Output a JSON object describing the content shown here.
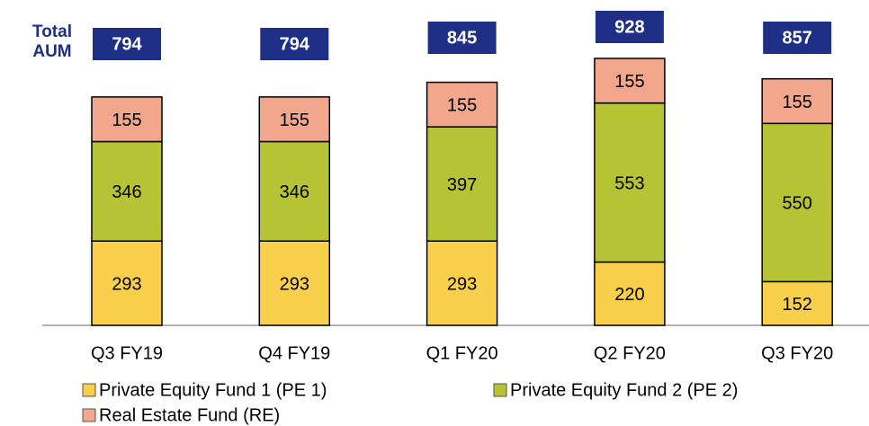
{
  "chart_data": {
    "type": "stacked_bar",
    "total_label": "Total\nAUM",
    "categories": [
      "Q3 FY19",
      "Q4 FY19",
      "Q1 FY20",
      "Q2 FY20",
      "Q3 FY20"
    ],
    "totals": [
      794,
      794,
      845,
      928,
      857
    ],
    "totals_color": "#1f2f86",
    "series": [
      {
        "name": "Private Equity Fund 1 (PE 1)",
        "color": "#f9d04c",
        "values": [
          293,
          293,
          293,
          220,
          152
        ]
      },
      {
        "name": "Private Equity Fund 2 (PE 2)",
        "color": "#b5c334",
        "values": [
          346,
          346,
          397,
          553,
          550
        ]
      },
      {
        "name": "Real Estate Fund (RE)",
        "color": "#f2a68c",
        "values": [
          155,
          155,
          155,
          155,
          155
        ]
      }
    ]
  }
}
